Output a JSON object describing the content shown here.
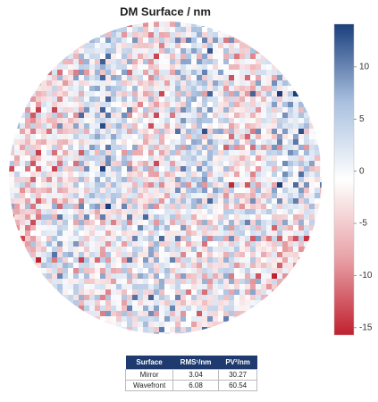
{
  "chart_data": {
    "type": "heatmap",
    "title": "DM Surface / nm",
    "colorbar": {
      "ylim": [
        -15.7,
        14.1
      ],
      "yticks": [
        -15,
        -10,
        -5,
        0,
        5,
        10
      ],
      "colors": [
        "#c0212f",
        "#e8a3a8",
        "#ffffff",
        "#a9c0df",
        "#1b3f7c"
      ]
    }
  },
  "table": {
    "header": [
      "Surface",
      "RMS¹/nm",
      "PV²/nm"
    ],
    "rows": [
      [
        "Mirror",
        "3.04",
        "30.27"
      ],
      [
        "Wavefront",
        "6.08",
        "60.54"
      ]
    ]
  }
}
